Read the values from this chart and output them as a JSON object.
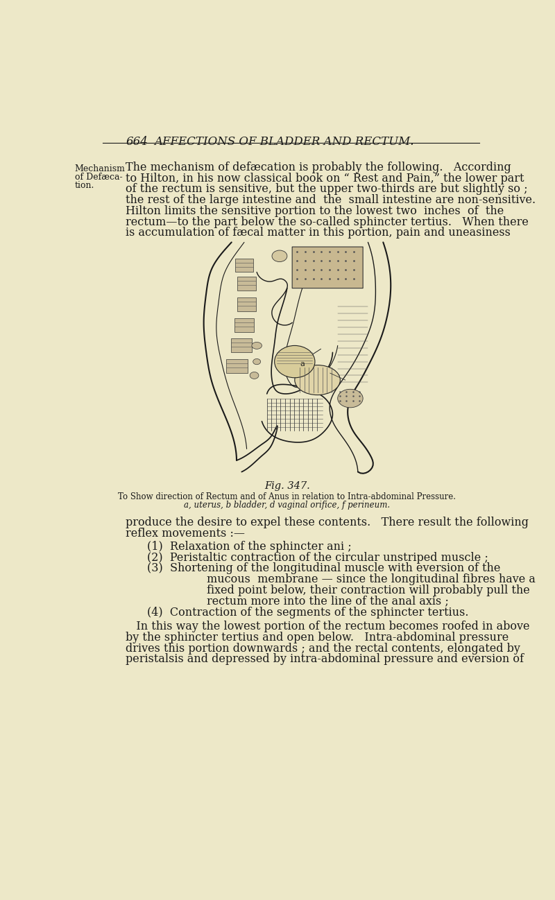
{
  "bg_color": "#EDE8C8",
  "page_width": 8.0,
  "page_height": 12.98,
  "dpi": 100,
  "header_page_num": "664",
  "header_title": "AFFECTIONS OF BLADDER AND RECTUM.",
  "text_color": "#1a1a1a",
  "body_fontsize": 11.5,
  "fig_label": "Fig. 347.",
  "fig_caption_line1": "To Show direction of Rectum and of Anus in relation to Intra-abdominal Pressure.",
  "fig_caption_line2": "a, uterus, b bladder, d vaginal orifice, f perineum.",
  "left_margin_labels": [
    "Mechanism",
    "of Defæca-",
    "tion."
  ],
  "para1_lines": [
    "The mechanism of defæcation is probably the following.   According",
    "to Hilton, in his now classical book on “ Rest and Pain,” the lower part",
    "of the rectum is sensitive, but the upper two-thirds are but slightly so ;",
    "the rest of the large intestine and  the  small intestine are non-sensitive.",
    "Hilton limits the sensitive portion to the lowest two  inches  of  the",
    "rectum—to the part below the so-called sphincter tertius.   When there",
    "is accumulation of fæcal matter in this portion, pain and uneasiness"
  ],
  "para2_lines": [
    "produce the desire to expel these contents.   There result the following",
    "reflex movements :—"
  ],
  "list_items": [
    [
      "(1)  Relaxation of the sphincter ani ;"
    ],
    [
      "(2)  Peristaltic contraction of the circular unstriped muscle ;"
    ],
    [
      "(3)  Shortening of the longitudinal muscle with eversion of the",
      "mucous  membrane — since the longitudinal fibres have a",
      "fixed point below, their contraction will probably pull the",
      "rectum more into the line of the anal axis ;"
    ],
    [
      "(4)  Contraction of the segments of the sphincter tertius."
    ]
  ],
  "para3_lines": [
    "In this way the lowest portion of the rectum becomes roofed in above",
    "by the sphincter tertius and open below.   Intra-abdominal pressure",
    "drives this portion downwards ; and the rectal contents, elongated by",
    "peristalsis and depressed by intra-abdominal pressure and eversion of"
  ]
}
